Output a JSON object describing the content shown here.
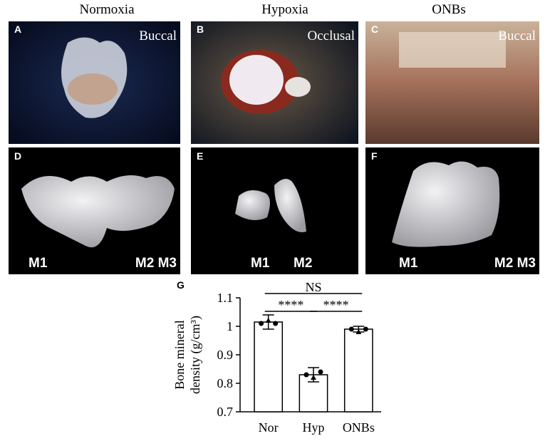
{
  "panels": [
    {
      "title": "Normoxia",
      "label": "A",
      "view": "Buccal"
    },
    {
      "title": "Hypoxia",
      "label": "B",
      "view": "Occlusal"
    },
    {
      "title": "ONBs",
      "label": "C",
      "view": "Buccal"
    }
  ],
  "renders": [
    {
      "label": "D",
      "teeth": [
        "M1",
        "M2 M3"
      ]
    },
    {
      "label": "E",
      "teeth": [
        "M1",
        "M2"
      ]
    },
    {
      "label": "F",
      "teeth": [
        "M1",
        "M2 M3"
      ]
    }
  ],
  "chart_data": {
    "type": "bar",
    "label": "G",
    "y_label": [
      "Bone mineral",
      "density (g/cm³)"
    ],
    "categories": [
      "Nor",
      "Hyp",
      "ONBs"
    ],
    "values": [
      1.015,
      0.83,
      0.99
    ],
    "errors": [
      0.025,
      0.025,
      0.01
    ],
    "points": [
      [
        1.01,
        1.02,
        1.01
      ],
      [
        0.83,
        0.82,
        0.84
      ],
      [
        0.99,
        0.98,
        0.99
      ]
    ],
    "significance": [
      "****",
      "****",
      "NS"
    ],
    "color": "#ffffff",
    "ylim": [
      0.7,
      1.1
    ],
    "yticks": [
      0.7,
      0.8,
      0.9,
      1,
      1.1
    ]
  }
}
